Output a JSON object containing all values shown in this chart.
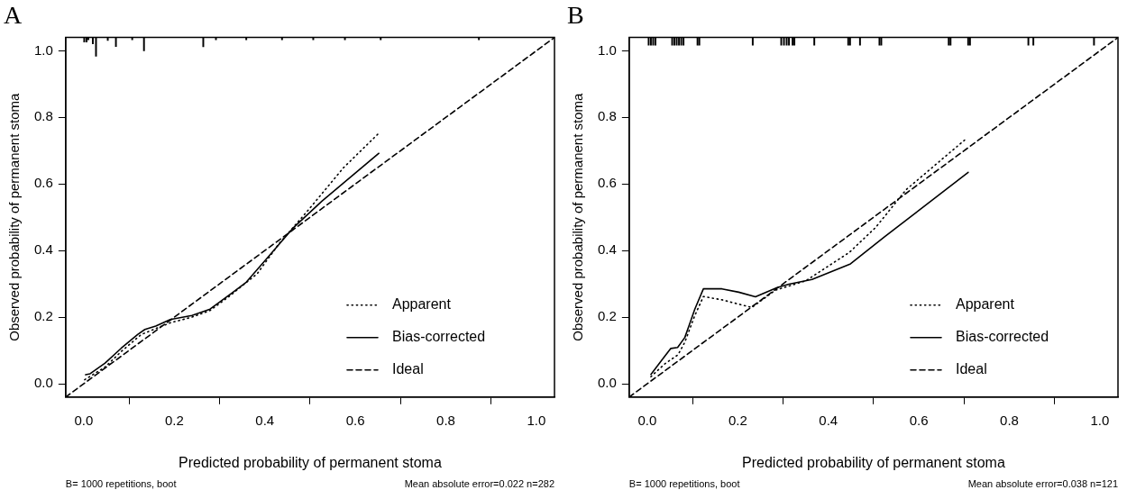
{
  "chart_data": [
    {
      "type": "line",
      "title": "A",
      "xlabel": "Predicted probability of permanent stoma",
      "ylabel": "Observed probability of permanent stoma",
      "xlim": [
        -0.04,
        1.04
      ],
      "ylim": [
        -0.04,
        1.04
      ],
      "xticks": [
        {
          "value": 0,
          "label": "0.0"
        },
        {
          "value": 0.2,
          "label": "0.2"
        },
        {
          "value": 0.4,
          "label": "0.4"
        },
        {
          "value": 0.6,
          "label": "0.6"
        },
        {
          "value": 0.8,
          "label": "0.8"
        },
        {
          "value": 1,
          "label": "1.0"
        }
      ],
      "yticks": [
        {
          "value": 0,
          "label": "0.0"
        },
        {
          "value": 0.2,
          "label": "0.2"
        },
        {
          "value": 0.4,
          "label": "0.4"
        },
        {
          "value": 0.6,
          "label": "0.6"
        },
        {
          "value": 0.8,
          "label": "0.8"
        },
        {
          "value": 1,
          "label": "1.0"
        }
      ],
      "legend": "bottom right",
      "marker": "none",
      "grid": false,
      "annotations": [
        "B= 1000 repetitions, boot",
        "Mean absolute error=0.022 n=282"
      ],
      "series": [
        {
          "name": "Apparent",
          "color": "#000000",
          "line_style": "dotted",
          "x": [
            0.002,
            0.047,
            0.083,
            0.127,
            0.191,
            0.239,
            0.279,
            0.319,
            0.383,
            0.431,
            0.495,
            0.574,
            0.65
          ],
          "values": [
            0.012,
            0.05,
            0.097,
            0.148,
            0.183,
            0.2,
            0.22,
            0.26,
            0.33,
            0.42,
            0.52,
            0.649,
            0.75
          ]
        },
        {
          "name": "Bias-corrected",
          "color": "#000000",
          "line_style": "solid",
          "x": [
            0.004,
            0.014,
            0.047,
            0.083,
            0.119,
            0.135,
            0.159,
            0.191,
            0.239,
            0.279,
            0.319,
            0.359,
            0.407,
            0.462,
            0.526,
            0.652
          ],
          "values": [
            0.027,
            0.03,
            0.062,
            0.107,
            0.148,
            0.163,
            0.173,
            0.193,
            0.205,
            0.224,
            0.264,
            0.305,
            0.38,
            0.467,
            0.548,
            0.692
          ]
        },
        {
          "name": "Ideal",
          "color": "#000000",
          "line_style": "dashed",
          "x": [
            -0.04,
            1.04
          ],
          "values": [
            -0.04,
            1.04
          ]
        },
        {
          "type": "bar",
          "color": "#000000",
          "x": [
            0.001,
            0.006,
            0.01,
            0.02,
            0.027,
            0.053,
            0.071,
            0.107,
            0.133,
            0.264,
            0.292,
            0.359,
            0.438,
            0.507,
            0.577,
            0.656,
            0.873
          ],
          "base": [
            1.04,
            1.04,
            1.04,
            1.04,
            1.04,
            1.04,
            1.04,
            1.04,
            1.04,
            1.04,
            1.04,
            1.04,
            1.04,
            1.04,
            1.04,
            1.04,
            1.04
          ],
          "values": [
            -0.014,
            -0.014,
            -0.007,
            -0.019,
            -0.056,
            -0.009,
            -0.027,
            -0.007,
            -0.04,
            -0.028,
            -0.007,
            -0.007,
            -0.007,
            -0.007,
            -0.007,
            -0.007,
            -0.007
          ]
        }
      ]
    },
    {
      "type": "line",
      "title": "B",
      "xlabel": "Predicted probability of permanent stoma",
      "ylabel": "Observed probability of permanent stoma",
      "xlim": [
        -0.04,
        1.04
      ],
      "ylim": [
        -0.04,
        1.04
      ],
      "xticks": [
        {
          "value": 0,
          "label": "0.0"
        },
        {
          "value": 0.2,
          "label": "0.2"
        },
        {
          "value": 0.4,
          "label": "0.4"
        },
        {
          "value": 0.6,
          "label": "0.6"
        },
        {
          "value": 0.8,
          "label": "0.8"
        },
        {
          "value": 1,
          "label": "1.0"
        }
      ],
      "yticks": [
        {
          "value": 0,
          "label": "0.0"
        },
        {
          "value": 0.2,
          "label": "0.2"
        },
        {
          "value": 0.4,
          "label": "0.4"
        },
        {
          "value": 0.6,
          "label": "0.6"
        },
        {
          "value": 0.8,
          "label": "0.8"
        },
        {
          "value": 1,
          "label": "1.0"
        }
      ],
      "legend": "bottom right",
      "marker": "none",
      "grid": false,
      "annotations": [
        "B= 1000 repetitions, boot",
        "Mean absolute error=0.038 n=121"
      ],
      "series": [
        {
          "name": "Apparent",
          "color": "#000000",
          "line_style": "dotted",
          "x": [
            0.008,
            0.038,
            0.068,
            0.083,
            0.105,
            0.124,
            0.165,
            0.231,
            0.283,
            0.35,
            0.446,
            0.505,
            0.572,
            0.703
          ],
          "values": [
            0.021,
            0.059,
            0.087,
            0.125,
            0.205,
            0.262,
            0.252,
            0.229,
            0.281,
            0.309,
            0.394,
            0.47,
            0.583,
            0.734
          ]
        },
        {
          "name": "Bias-corrected",
          "color": "#000000",
          "line_style": "solid",
          "x": [
            0.008,
            0.031,
            0.052,
            0.067,
            0.083,
            0.105,
            0.124,
            0.165,
            0.202,
            0.239,
            0.287,
            0.313,
            0.364,
            0.449,
            0.523,
            0.709
          ],
          "values": [
            0.028,
            0.069,
            0.106,
            0.109,
            0.139,
            0.224,
            0.285,
            0.285,
            0.275,
            0.261,
            0.289,
            0.299,
            0.313,
            0.36,
            0.44,
            0.635
          ]
        },
        {
          "name": "Ideal",
          "color": "#000000",
          "line_style": "dashed",
          "x": [
            -0.04,
            1.04
          ],
          "values": [
            -0.04,
            1.04
          ]
        },
        {
          "type": "bar",
          "color": "#000000",
          "x": [
            0.003,
            0.008,
            0.013,
            0.018,
            0.055,
            0.06,
            0.065,
            0.07,
            0.075,
            0.08,
            0.111,
            0.115,
            0.233,
            0.296,
            0.302,
            0.308,
            0.313,
            0.321,
            0.325,
            0.369,
            0.444,
            0.448,
            0.47,
            0.513,
            0.517,
            0.666,
            0.67,
            0.709,
            0.713,
            0.842,
            0.853,
            0.987
          ],
          "base": [
            1.04,
            1.04,
            1.04,
            1.04,
            1.04,
            1.04,
            1.04,
            1.04,
            1.04,
            1.04,
            1.04,
            1.04,
            1.04,
            1.04,
            1.04,
            1.04,
            1.04,
            1.04,
            1.04,
            1.04,
            1.04,
            1.04,
            1.04,
            1.04,
            1.04,
            1.04,
            1.04,
            1.04,
            1.04,
            1.04,
            1.04,
            1.04
          ],
          "values": [
            -0.023,
            -0.023,
            -0.023,
            -0.023,
            -0.023,
            -0.023,
            -0.023,
            -0.023,
            -0.023,
            -0.023,
            -0.023,
            -0.023,
            -0.023,
            -0.023,
            -0.023,
            -0.023,
            -0.023,
            -0.023,
            -0.023,
            -0.023,
            -0.023,
            -0.023,
            -0.023,
            -0.023,
            -0.023,
            -0.023,
            -0.023,
            -0.023,
            -0.023,
            -0.023,
            -0.023,
            -0.023
          ]
        }
      ]
    }
  ]
}
